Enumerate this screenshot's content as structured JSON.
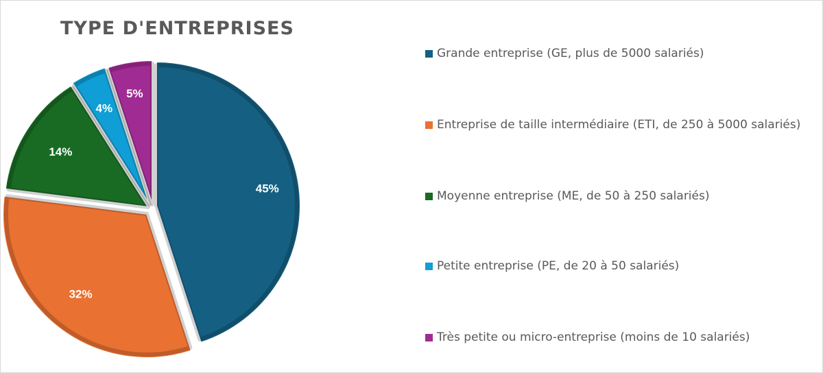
{
  "chart_data": {
    "type": "pie",
    "title": "TYPE D'ENTREPRISES",
    "categories": [
      "Grande entreprise (GE, plus de 5000 salariés)",
      "Entreprise de taille intermédiaire (ETI, de 250 à 5000 salariés)",
      "Moyenne entreprise (ME, de 50 à 250 salariés)",
      "Petite entreprise (PE, de 20 à 50 salariés)",
      "Très petite ou micro-entreprise (moins de 10 salariés)"
    ],
    "values": [
      45,
      32,
      14,
      4,
      5
    ],
    "labels": [
      "45%",
      "32%",
      "14%",
      "4%",
      "5%"
    ],
    "colors": [
      "#156082",
      "#E97132",
      "#196B24",
      "#0F9ED5",
      "#A02B93"
    ],
    "legend_position": "right"
  }
}
